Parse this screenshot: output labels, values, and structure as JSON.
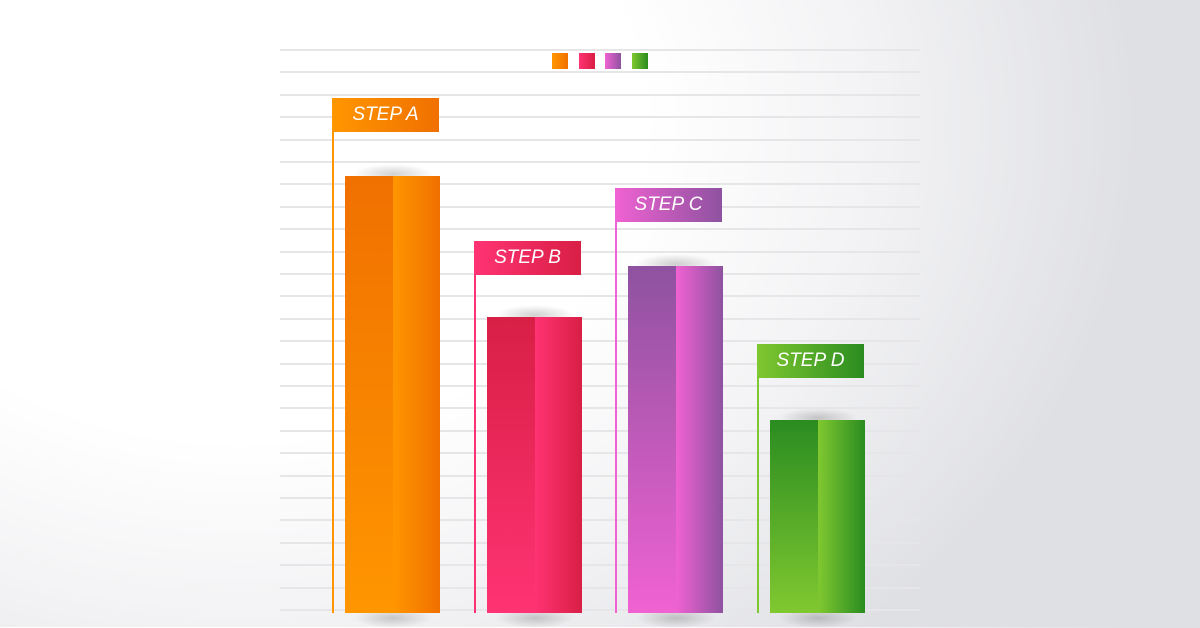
{
  "chart_data": {
    "type": "bar",
    "categories": [
      "STEP A",
      "STEP B",
      "STEP C",
      "STEP D"
    ],
    "values": [
      19.5,
      13.2,
      15.5,
      8.6
    ],
    "title": "",
    "xlabel": "",
    "ylabel": "",
    "ylim": [
      0,
      25
    ],
    "grid": true,
    "legend": "top-center",
    "colors": [
      {
        "dark": "#f07000",
        "light": "#ff9600"
      },
      {
        "dark": "#d81f45",
        "light": "#ff3373"
      },
      {
        "dark": "#8e52a0",
        "light": "#f062d2"
      },
      {
        "dark": "#2a8c20",
        "light": "#80c830"
      }
    ]
  }
}
